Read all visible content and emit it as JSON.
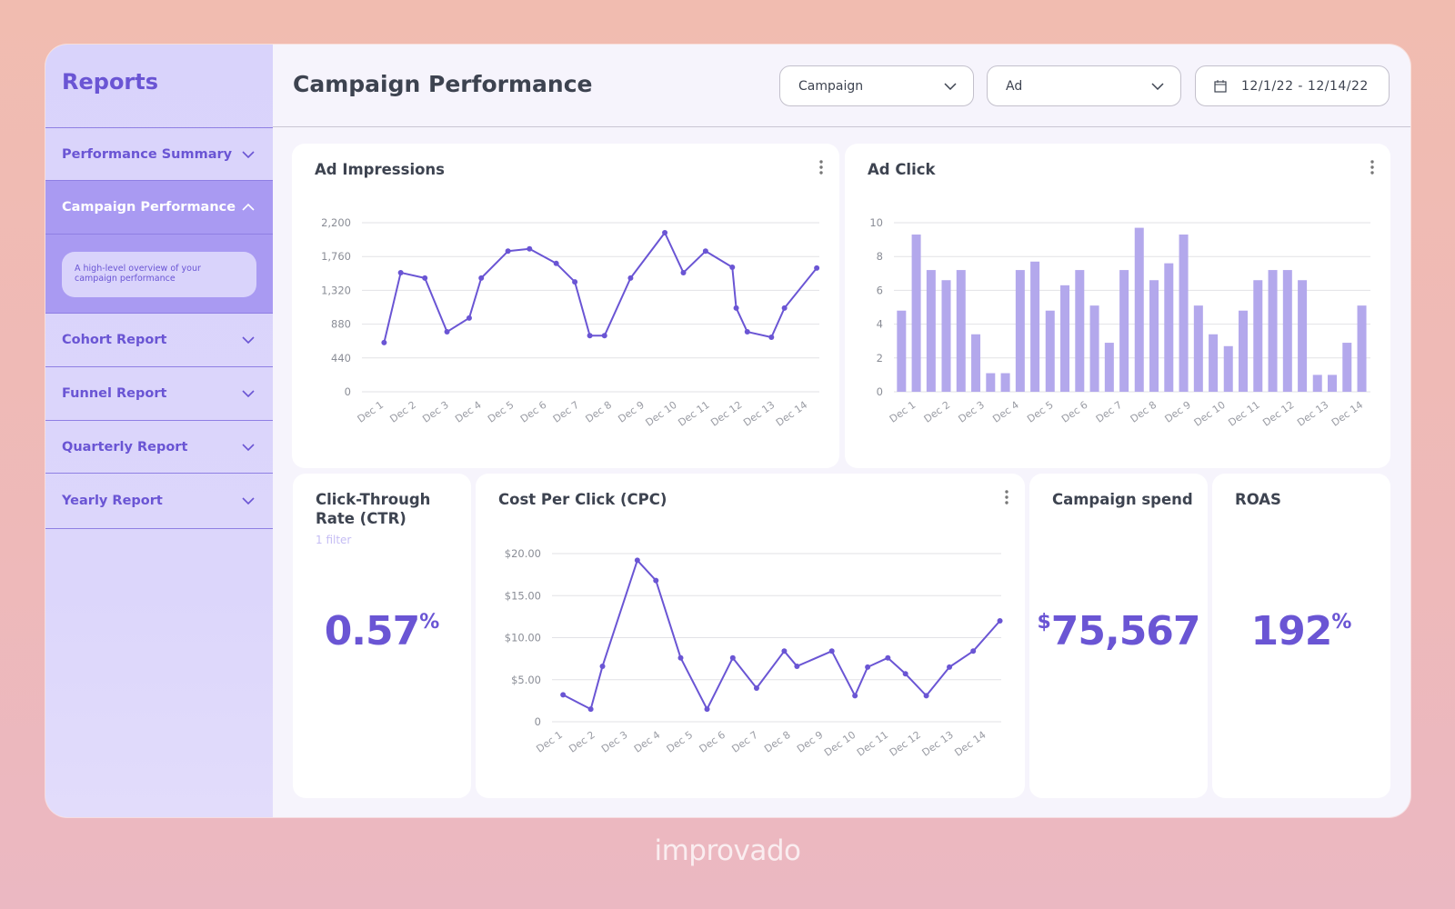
{
  "sidebar": {
    "title": "Reports",
    "items": [
      {
        "label": "Performance Summary"
      },
      {
        "label": "Campaign Performance",
        "description": "A high-level overview of your campaign performance"
      },
      {
        "label": "Cohort Report"
      },
      {
        "label": "Funnel Report"
      },
      {
        "label": "Quarterly Report"
      },
      {
        "label": "Yearly Report"
      }
    ]
  },
  "header": {
    "title": "Campaign Performance",
    "filters": [
      "Campaign",
      "Ad"
    ],
    "date_range": "12/1/22 - 12/14/22"
  },
  "chart_data": [
    {
      "type": "line",
      "title": "Ad Impressions",
      "color": "#6a55d4",
      "grid": true,
      "x": [
        1.0,
        1.51,
        2.25,
        2.93,
        3.61,
        3.98,
        4.8,
        5.46,
        6.28,
        6.85,
        7.31,
        7.76,
        8.56,
        9.61,
        10.18,
        10.86,
        11.68,
        11.8,
        12.14,
        12.88,
        13.28,
        14.27
      ],
      "values": [
        640,
        1550,
        1480,
        780,
        960,
        1480,
        1830,
        1860,
        1670,
        1430,
        730,
        730,
        1480,
        2070,
        1550,
        1830,
        1620,
        1090,
        780,
        710,
        1090,
        1610
      ],
      "xlim": [
        0.32,
        14.35
      ],
      "xticks": [
        {
          "value": 1,
          "label": "Dec 1"
        },
        {
          "value": 2,
          "label": "Dec 2"
        },
        {
          "value": 3,
          "label": "Dec 3"
        },
        {
          "value": 4,
          "label": "Dec 4"
        },
        {
          "value": 5,
          "label": "Dec 5"
        },
        {
          "value": 6,
          "label": "Dec 6"
        },
        {
          "value": 7,
          "label": "Dec 7"
        },
        {
          "value": 8,
          "label": "Dec 8"
        },
        {
          "value": 9,
          "label": "Dec 9"
        },
        {
          "value": 10,
          "label": "Dec 10"
        },
        {
          "value": 11,
          "label": "Dec 11"
        },
        {
          "value": 12,
          "label": "Dec 12"
        },
        {
          "value": 13,
          "label": "Dec 13"
        },
        {
          "value": 14,
          "label": "Dec 14"
        }
      ],
      "ylim": [
        0,
        2200
      ],
      "yticks": [
        0,
        440,
        880,
        {
          "value": 1320,
          "label": "1,320"
        },
        {
          "value": 1760,
          "label": "1,760"
        },
        {
          "value": 2200,
          "label": "2,200"
        }
      ]
    },
    {
      "type": "bar",
      "title": "Ad Click",
      "color": "#b3a8ec",
      "grid": true,
      "x": [
        0.57,
        1.0,
        1.43,
        1.87,
        2.3,
        2.73,
        3.16,
        3.59,
        4.02,
        4.45,
        4.89,
        5.32,
        5.75,
        6.18,
        6.61,
        7.04,
        7.48,
        7.91,
        8.34,
        8.77,
        9.2,
        9.63,
        10.07,
        10.5,
        10.93,
        11.36,
        11.79,
        12.22,
        12.66,
        13.09,
        13.52,
        13.95
      ],
      "values": [
        4.8,
        9.3,
        7.2,
        6.6,
        7.2,
        3.4,
        1.1,
        1.1,
        7.2,
        7.7,
        4.8,
        6.3,
        7.2,
        5.1,
        2.9,
        7.2,
        9.7,
        6.6,
        7.6,
        9.3,
        5.1,
        3.4,
        2.7,
        4.8,
        6.6,
        7.2,
        7.2,
        6.6,
        1.0,
        1.0,
        2.9,
        5.1
      ],
      "xlim": [
        0.35,
        14.2
      ],
      "xticks": [
        {
          "value": 1,
          "label": "Dec 1"
        },
        {
          "value": 2,
          "label": "Dec 2"
        },
        {
          "value": 3,
          "label": "Dec 3"
        },
        {
          "value": 4,
          "label": "Dec 4"
        },
        {
          "value": 5,
          "label": "Dec 5"
        },
        {
          "value": 6,
          "label": "Dec 6"
        },
        {
          "value": 7,
          "label": "Dec 7"
        },
        {
          "value": 8,
          "label": "Dec 8"
        },
        {
          "value": 9,
          "label": "Dec 9"
        },
        {
          "value": 10,
          "label": "Dec 10"
        },
        {
          "value": 11,
          "label": "Dec 11"
        },
        {
          "value": 12,
          "label": "Dec 12"
        },
        {
          "value": 13,
          "label": "Dec 13"
        },
        {
          "value": 14,
          "label": "Dec 14"
        }
      ],
      "ylim": [
        0,
        10
      ],
      "yticks": [
        0,
        2,
        4,
        6,
        8,
        10
      ]
    },
    {
      "type": "line",
      "title": "Cost Per Click (CPC)",
      "color": "#6a55d4",
      "grid": true,
      "x": [
        1.0,
        1.85,
        2.21,
        3.28,
        3.85,
        4.61,
        5.42,
        6.21,
        6.94,
        7.79,
        8.18,
        9.25,
        9.96,
        10.35,
        10.97,
        11.51,
        12.15,
        12.86,
        13.59,
        14.41
      ],
      "values": [
        3.2,
        1.5,
        6.6,
        19.2,
        16.8,
        7.6,
        1.5,
        7.6,
        4.0,
        8.4,
        6.6,
        8.4,
        3.1,
        6.5,
        7.6,
        5.7,
        3.1,
        6.5,
        8.4,
        12.0
      ],
      "xlim": [
        0.66,
        14.45
      ],
      "xticks": [
        {
          "value": 1,
          "label": "Dec 1"
        },
        {
          "value": 2,
          "label": "Dec 2"
        },
        {
          "value": 3,
          "label": "Dec 3"
        },
        {
          "value": 4,
          "label": "Dec 4"
        },
        {
          "value": 5,
          "label": "Dec 5"
        },
        {
          "value": 6,
          "label": "Dec 6"
        },
        {
          "value": 7,
          "label": "Dec 7"
        },
        {
          "value": 8,
          "label": "Dec 8"
        },
        {
          "value": 9,
          "label": "Dec 9"
        },
        {
          "value": 10,
          "label": "Dec 10"
        },
        {
          "value": 11,
          "label": "Dec 11"
        },
        {
          "value": 12,
          "label": "Dec 12"
        },
        {
          "value": 13,
          "label": "Dec 13"
        },
        {
          "value": 14,
          "label": "Dec 14"
        }
      ],
      "ylim": [
        0,
        20
      ],
      "yticks": [
        0,
        {
          "value": 5,
          "label": "$5.00"
        },
        {
          "value": 10,
          "label": "$10.00"
        },
        {
          "value": 15,
          "label": "$15.00"
        },
        {
          "value": 20,
          "label": "$20.00"
        }
      ]
    }
  ],
  "kpis": [
    {
      "title": "Click-Through Rate (CTR)",
      "filter": "1 filter",
      "value": "0.57",
      "suffix": "%"
    },
    {
      "title": "Campaign spend",
      "prefix": "$",
      "value": "75,567"
    },
    {
      "title": "ROAS",
      "value": "192",
      "suffix": "%"
    }
  ],
  "footer": {
    "logo": "improvado"
  }
}
